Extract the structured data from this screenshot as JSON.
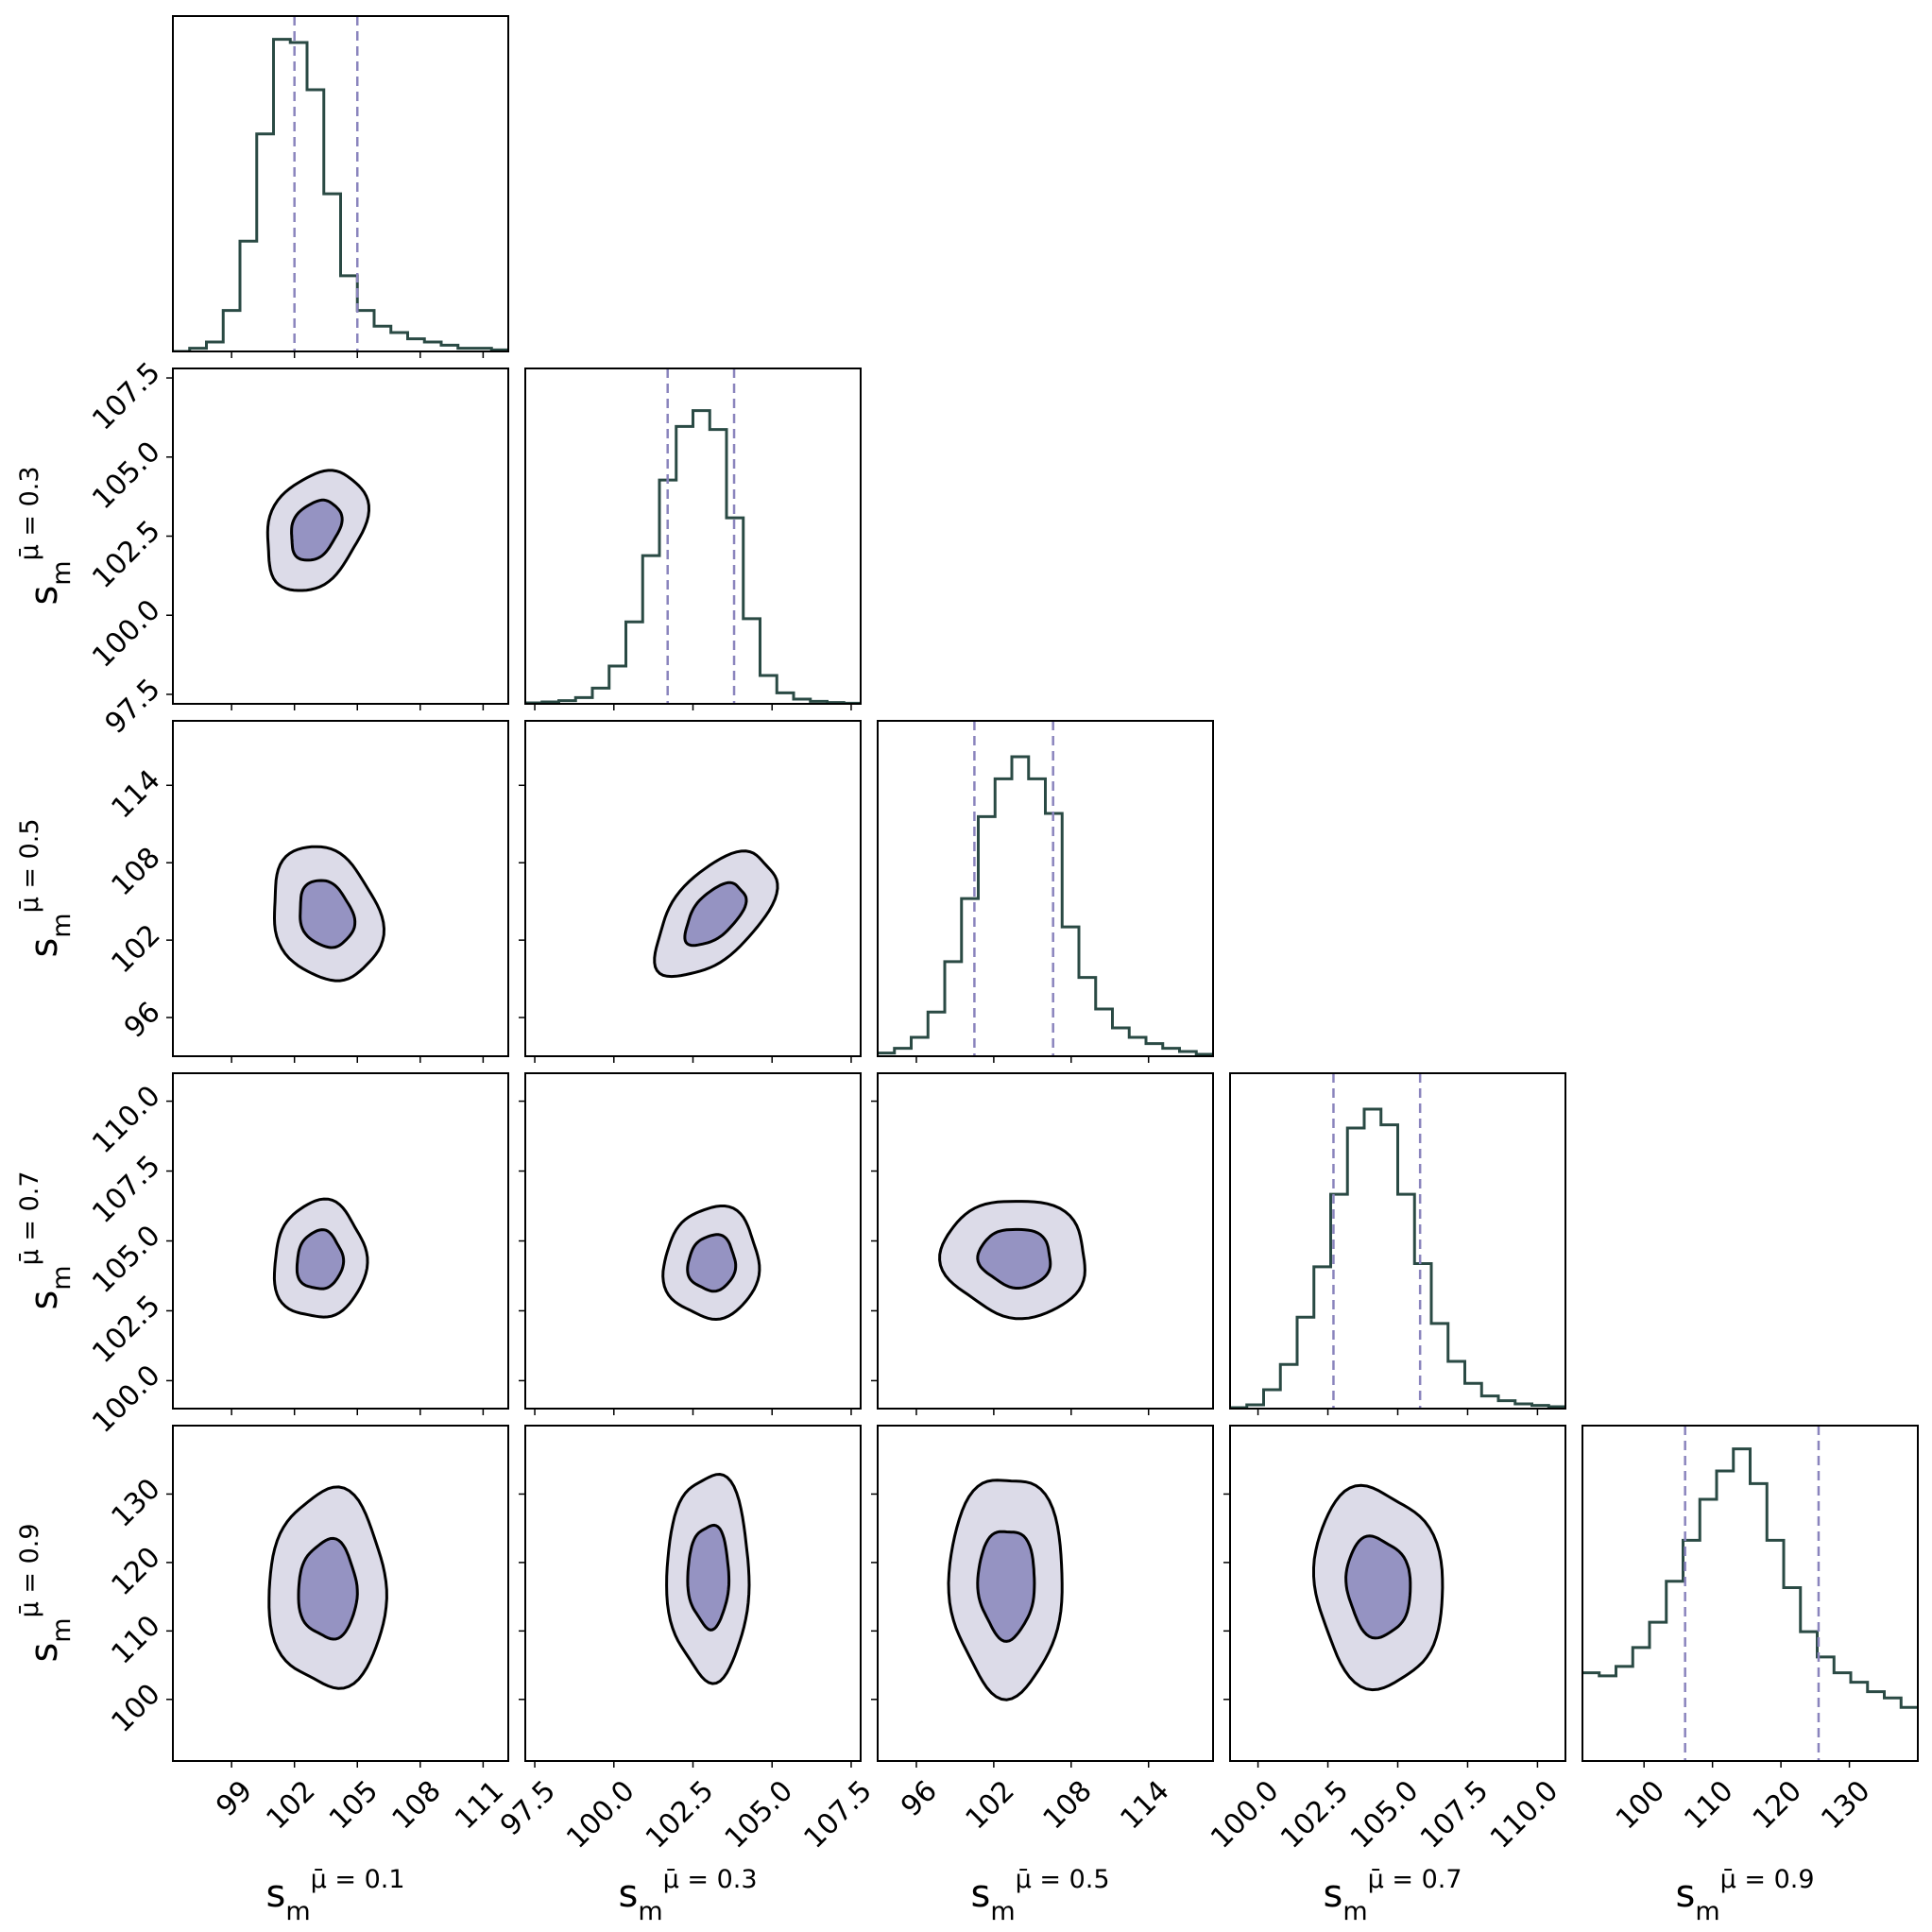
{
  "colors": {
    "hist_line": "#2a4a44",
    "quantile_line": "#8a84bd",
    "outer_fill": "#dcdbe8",
    "inner_fill": "#9593c2",
    "contour_line": "#000000",
    "frame": "#000000"
  },
  "chart_data": {
    "type": "corner",
    "parameters": [
      {
        "name": "s_m^{mu=0.1}",
        "range": [
          96.2,
          112.2
        ],
        "ticks": [
          99,
          102,
          105,
          108,
          111
        ],
        "tick_labels": [
          "99",
          "102",
          "105",
          "108",
          "111"
        ],
        "quantiles": [
          102.0,
          105.0
        ]
      },
      {
        "name": "s_m^{mu=0.3}",
        "range": [
          97.2,
          107.8
        ],
        "ticks": [
          97.5,
          100.0,
          102.5,
          105.0,
          107.5
        ],
        "tick_labels": [
          "97.5",
          "100.0",
          "102.5",
          "105.0",
          "107.5"
        ],
        "quantiles": [
          101.7,
          103.8
        ]
      },
      {
        "name": "s_m^{mu=0.5}",
        "range": [
          93.0,
          119.0
        ],
        "ticks": [
          96,
          102,
          108,
          114
        ],
        "tick_labels": [
          "96",
          "102",
          "108",
          "114"
        ],
        "quantiles": [
          100.5,
          106.6
        ]
      },
      {
        "name": "s_m^{mu=0.7}",
        "range": [
          99.0,
          111.0
        ],
        "ticks": [
          100.0,
          102.5,
          105.0,
          107.5,
          110.0
        ],
        "tick_labels": [
          "100.0",
          "102.5",
          "105.0",
          "107.5",
          "110.0"
        ],
        "quantiles": [
          102.7,
          105.8
        ]
      },
      {
        "name": "s_m^{mu=0.9}",
        "range": [
          91.0,
          140.0
        ],
        "ticks": [
          100,
          110,
          120,
          130
        ],
        "tick_labels": [
          "100",
          "110",
          "120",
          "130"
        ],
        "quantiles": [
          106.0,
          125.5
        ]
      }
    ],
    "axis_labels": [
      {
        "base": "s",
        "sup": "μ̄ = 0.1",
        "sub": "m"
      },
      {
        "base": "s",
        "sup": "μ̄ = 0.3",
        "sub": "m"
      },
      {
        "base": "s",
        "sup": "μ̄ = 0.5",
        "sub": "m"
      },
      {
        "base": "s",
        "sup": "μ̄ = 0.7",
        "sub": "m"
      },
      {
        "base": "s",
        "sup": "μ̄ = 0.9",
        "sub": "m"
      }
    ],
    "histograms": [
      {
        "param": 0,
        "bin_start": 96.2,
        "bin_width": 0.8,
        "heights": [
          0,
          0.01,
          0.03,
          0.13,
          0.35,
          0.69,
          0.99,
          0.98,
          0.83,
          0.5,
          0.24,
          0.13,
          0.08,
          0.06,
          0.04,
          0.03,
          0.02,
          0.01,
          0.01,
          0.005
        ]
      },
      {
        "param": 1,
        "bin_start": 97.2,
        "bin_width": 0.53,
        "heights": [
          0.003,
          0.006,
          0.01,
          0.02,
          0.05,
          0.12,
          0.26,
          0.47,
          0.71,
          0.88,
          0.93,
          0.87,
          0.59,
          0.27,
          0.09,
          0.035,
          0.015,
          0.008,
          0.004,
          0.002
        ]
      },
      {
        "param": 2,
        "bin_start": 93.0,
        "bin_width": 1.3,
        "heights": [
          0.01,
          0.025,
          0.06,
          0.14,
          0.3,
          0.5,
          0.76,
          0.88,
          0.95,
          0.88,
          0.77,
          0.41,
          0.25,
          0.15,
          0.09,
          0.06,
          0.04,
          0.025,
          0.015,
          0.006
        ]
      },
      {
        "param": 3,
        "bin_start": 99.0,
        "bin_width": 0.6,
        "heights": [
          0.003,
          0.012,
          0.06,
          0.14,
          0.29,
          0.45,
          0.68,
          0.89,
          0.95,
          0.9,
          0.68,
          0.46,
          0.27,
          0.15,
          0.08,
          0.04,
          0.025,
          0.015,
          0.01,
          0.006
        ]
      },
      {
        "param": 4,
        "bin_start": 91.0,
        "bin_width": 2.45,
        "heights": [
          0.28,
          0.27,
          0.3,
          0.36,
          0.44,
          0.57,
          0.7,
          0.83,
          0.92,
          0.99,
          0.88,
          0.7,
          0.55,
          0.41,
          0.33,
          0.28,
          0.25,
          0.22,
          0.2,
          0.17
        ]
      }
    ],
    "contours": [
      {
        "row": 1,
        "col": 0,
        "center": [
          103.0,
          102.7
        ],
        "sigma": [
          1.2,
          0.95
        ],
        "rho": 0.3
      },
      {
        "row": 2,
        "col": 0,
        "center": [
          103.5,
          104.0
        ],
        "sigma": [
          1.3,
          2.6
        ],
        "rho": -0.2
      },
      {
        "row": 2,
        "col": 1,
        "center": [
          103.2,
          104.0
        ],
        "sigma": [
          0.95,
          2.4
        ],
        "rho": 0.55
      },
      {
        "row": 3,
        "col": 0,
        "center": [
          103.2,
          104.3
        ],
        "sigma": [
          1.1,
          1.05
        ],
        "rho": 0.05
      },
      {
        "row": 3,
        "col": 1,
        "center": [
          103.1,
          104.2
        ],
        "sigma": [
          0.75,
          1.0
        ],
        "rho": 0.05
      },
      {
        "row": 3,
        "col": 2,
        "center": [
          103.7,
          104.4
        ],
        "sigma": [
          2.8,
          1.05
        ],
        "rho": -0.05
      },
      {
        "row": 4,
        "col": 0,
        "center": [
          103.6,
          116.0
        ],
        "sigma": [
          1.4,
          7.2
        ],
        "rho": 0.0
      },
      {
        "row": 4,
        "col": 1,
        "center": [
          103.0,
          118.0
        ],
        "sigma": [
          0.65,
          7.5
        ],
        "rho": 0.0
      },
      {
        "row": 4,
        "col": 2,
        "center": [
          103.0,
          117.0
        ],
        "sigma": [
          2.2,
          8.0
        ],
        "rho": 0.0
      },
      {
        "row": 4,
        "col": 3,
        "center": [
          104.3,
          116.5
        ],
        "sigma": [
          1.15,
          7.3
        ],
        "rho": -0.1
      }
    ],
    "contour_levels": [
      "inner (~39%)",
      "outer (~86%)"
    ]
  }
}
